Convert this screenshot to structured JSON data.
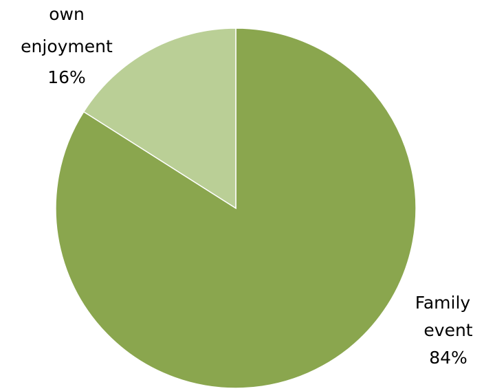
{
  "chart_data": {
    "type": "pie",
    "title": "",
    "slices": [
      {
        "label_lines": [
          "Family",
          "event"
        ],
        "percent_label": "84%",
        "value": 84,
        "color": "#8aa64e"
      },
      {
        "label_lines": [
          "own",
          "enjoyment"
        ],
        "percent_label": "16%",
        "value": 16,
        "color": "#bacf96"
      }
    ],
    "legend": "none"
  }
}
